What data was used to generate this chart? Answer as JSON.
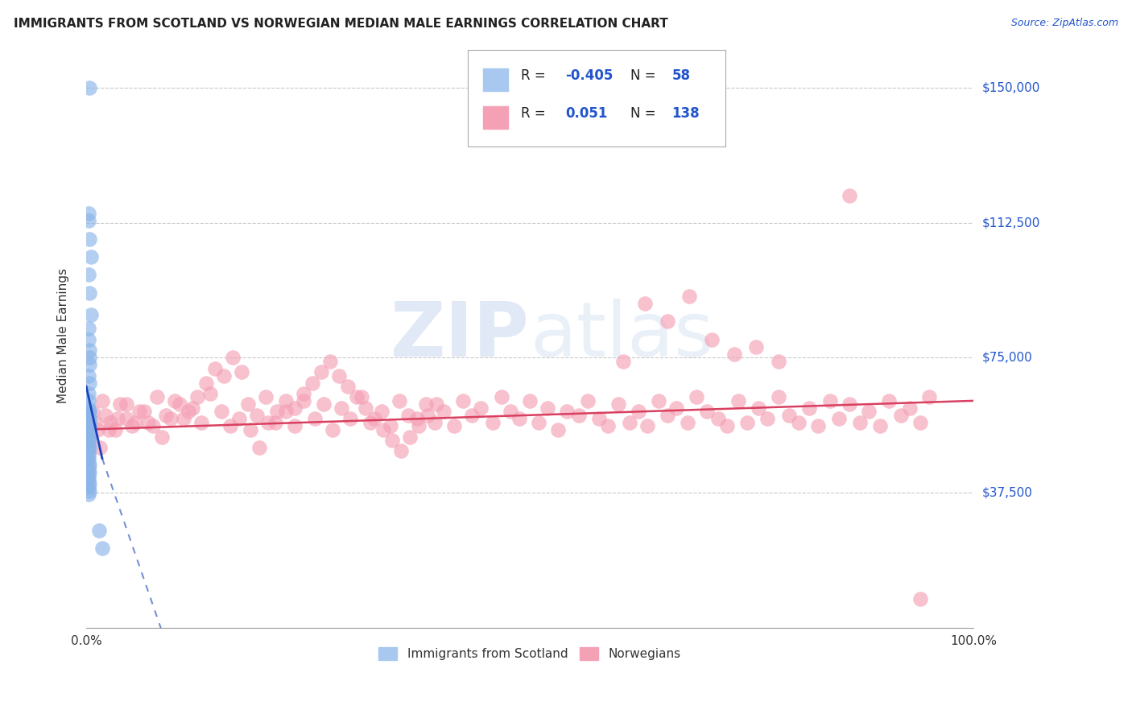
{
  "title": "IMMIGRANTS FROM SCOTLAND VS NORWEGIAN MEDIAN MALE EARNINGS CORRELATION CHART",
  "source": "Source: ZipAtlas.com",
  "ylabel": "Median Male Earnings",
  "xlim": [
    0.0,
    1.0
  ],
  "ylim": [
    0,
    162000
  ],
  "scotland_color": "#8ab4e8",
  "norwegian_color": "#f4a0b5",
  "scotland_line_color": "#1a44bb",
  "norwegian_line_color": "#d94060",
  "background_color": "#ffffff",
  "grid_color": "#bbbbbb",
  "watermark_color": "#dce8f5",
  "scotland_x": [
    0.004,
    0.003,
    0.003,
    0.004,
    0.005,
    0.003,
    0.004,
    0.005,
    0.003,
    0.003,
    0.004,
    0.004,
    0.004,
    0.003,
    0.004,
    0.003,
    0.003,
    0.003,
    0.004,
    0.003,
    0.003,
    0.003,
    0.004,
    0.003,
    0.003,
    0.004,
    0.003,
    0.003,
    0.004,
    0.004,
    0.003,
    0.003,
    0.003,
    0.003,
    0.004,
    0.003,
    0.003,
    0.003,
    0.003,
    0.004,
    0.003,
    0.004,
    0.003,
    0.003,
    0.004,
    0.003,
    0.004,
    0.003,
    0.014,
    0.018,
    0.004,
    0.003,
    0.003,
    0.004,
    0.003,
    0.004,
    0.003,
    0.003
  ],
  "scotland_y": [
    150000,
    115000,
    113000,
    108000,
    103000,
    98000,
    93000,
    87000,
    83000,
    80000,
    77000,
    75000,
    73000,
    70000,
    68000,
    65000,
    63000,
    61000,
    58000,
    56000,
    55000,
    54000,
    53000,
    52000,
    51000,
    60000,
    59000,
    58000,
    57000,
    56000,
    55000,
    54000,
    53000,
    52000,
    50000,
    49000,
    48000,
    47000,
    46000,
    45000,
    44000,
    43000,
    42000,
    41000,
    40000,
    39000,
    38000,
    37000,
    27000,
    22000,
    60000,
    58000,
    57000,
    56000,
    55000,
    54000,
    53000,
    52000
  ],
  "norwegian_x": [
    0.007,
    0.01,
    0.013,
    0.018,
    0.022,
    0.027,
    0.033,
    0.038,
    0.045,
    0.052,
    0.06,
    0.07,
    0.08,
    0.09,
    0.1,
    0.11,
    0.12,
    0.13,
    0.14,
    0.152,
    0.162,
    0.172,
    0.182,
    0.192,
    0.202,
    0.213,
    0.225,
    0.235,
    0.245,
    0.258,
    0.268,
    0.278,
    0.288,
    0.298,
    0.31,
    0.32,
    0.333,
    0.343,
    0.353,
    0.363,
    0.373,
    0.383,
    0.393,
    0.403,
    0.415,
    0.425,
    0.435,
    0.445,
    0.458,
    0.468,
    0.478,
    0.488,
    0.5,
    0.51,
    0.52,
    0.532,
    0.542,
    0.555,
    0.565,
    0.578,
    0.588,
    0.6,
    0.612,
    0.622,
    0.632,
    0.645,
    0.655,
    0.665,
    0.678,
    0.688,
    0.7,
    0.712,
    0.722,
    0.735,
    0.745,
    0.758,
    0.768,
    0.78,
    0.792,
    0.803,
    0.815,
    0.825,
    0.838,
    0.848,
    0.86,
    0.872,
    0.882,
    0.895,
    0.905,
    0.918,
    0.928,
    0.94,
    0.95,
    0.015,
    0.025,
    0.035,
    0.045,
    0.055,
    0.065,
    0.075,
    0.085,
    0.095,
    0.105,
    0.115,
    0.125,
    0.135,
    0.145,
    0.155,
    0.165,
    0.175,
    0.185,
    0.195,
    0.205,
    0.215,
    0.225,
    0.235,
    0.245,
    0.255,
    0.265,
    0.275,
    0.285,
    0.295,
    0.305,
    0.315,
    0.325,
    0.335,
    0.345,
    0.355,
    0.365,
    0.375,
    0.385,
    0.395,
    0.605,
    0.63,
    0.655,
    0.68,
    0.705,
    0.73,
    0.755,
    0.78,
    0.86,
    0.94
  ],
  "norwegian_y": [
    60000,
    57000,
    55000,
    63000,
    59000,
    57000,
    55000,
    62000,
    58000,
    56000,
    60000,
    57000,
    64000,
    59000,
    63000,
    58000,
    61000,
    57000,
    65000,
    60000,
    56000,
    58000,
    62000,
    59000,
    64000,
    57000,
    60000,
    56000,
    63000,
    58000,
    62000,
    55000,
    61000,
    58000,
    64000,
    57000,
    60000,
    56000,
    63000,
    59000,
    58000,
    62000,
    57000,
    60000,
    56000,
    63000,
    59000,
    61000,
    57000,
    64000,
    60000,
    58000,
    63000,
    57000,
    61000,
    55000,
    60000,
    59000,
    63000,
    58000,
    56000,
    62000,
    57000,
    60000,
    56000,
    63000,
    59000,
    61000,
    57000,
    64000,
    60000,
    58000,
    56000,
    63000,
    57000,
    61000,
    58000,
    64000,
    59000,
    57000,
    61000,
    56000,
    63000,
    58000,
    62000,
    57000,
    60000,
    56000,
    63000,
    59000,
    61000,
    57000,
    64000,
    50000,
    55000,
    58000,
    62000,
    57000,
    60000,
    56000,
    53000,
    58000,
    62000,
    60000,
    64000,
    68000,
    72000,
    70000,
    75000,
    71000,
    55000,
    50000,
    57000,
    60000,
    63000,
    61000,
    65000,
    68000,
    71000,
    74000,
    70000,
    67000,
    64000,
    61000,
    58000,
    55000,
    52000,
    49000,
    53000,
    56000,
    59000,
    62000,
    74000,
    90000,
    85000,
    92000,
    80000,
    76000,
    78000,
    74000,
    120000,
    8000
  ]
}
